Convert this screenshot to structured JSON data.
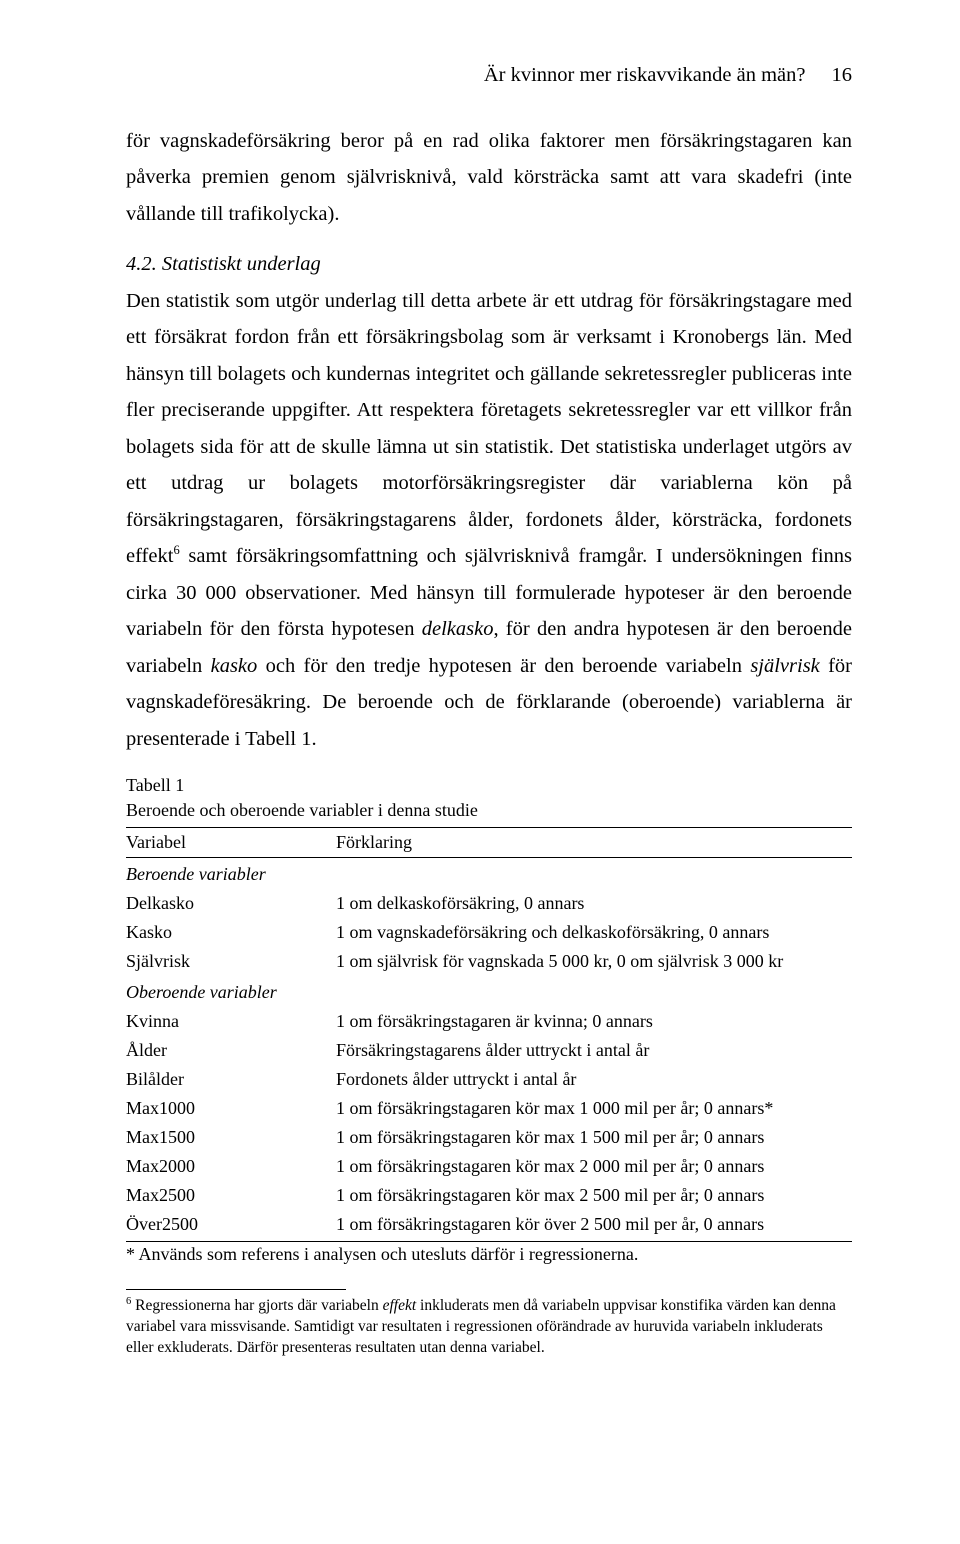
{
  "running_head": {
    "title": "Är kvinnor mer riskavvikande än män?",
    "page_number": "16"
  },
  "para1": "för vagnskadeförsäkring beror på en rad olika faktorer men försäkringstagaren kan påverka premien genom självrisknivå, vald körsträcka samt att vara skadefri (inte vållande till trafikolycka).",
  "section_heading": "4.2. Statistiskt underlag",
  "para2_a": "Den statistik som utgör underlag till detta arbete är ett utdrag för försäkringstagare med ett försäkrat fordon från ett försäkringsbolag som är verksamt i Kronobergs län. Med hänsyn till bolagets och kundernas integritet och gällande sekretessregler publiceras inte fler preciserande uppgifter. Att respektera företagets sekretessregler var ett villkor från bolagets sida för att de skulle lämna ut sin statistik. Det statistiska underlaget utgörs av ett utdrag ur bolagets motorförsäkringsregister där variablerna kön på försäkringstagaren, försäkringstagarens ålder, fordonets ålder, körsträcka, fordonets effekt",
  "sup6": "6",
  "para2_b": " samt försäkringsomfattning och självrisknivå framgår. I undersökningen finns cirka 30 000 observationer. Med hänsyn till formulerade hypoteser är den beroende variabeln för den första hypotesen ",
  "italic_delkasko": "delkasko",
  "para2_c": ", för den andra hypotesen är den beroende variabeln ",
  "italic_kasko": "kasko",
  "para2_d": " och för den tredje hypotesen är den beroende variabeln ",
  "italic_sjalvrisk": "självrisk",
  "para2_e": " för vagnskadeföresäkring. De beroende och de förklarande (oberoende) variablerna är presenterade i Tabell 1.",
  "table": {
    "title": "Tabell 1",
    "subtitle": "Beroende och oberoende variabler i denna studie",
    "col_variable": "Variabel",
    "col_explain": "Förklaring",
    "group_dep": "Beroende variabler",
    "group_indep": "Oberoende variabler",
    "dep_rows": [
      {
        "v": "Delkasko",
        "e": "1 om delkaskoförsäkring, 0 annars"
      },
      {
        "v": "Kasko",
        "e": "1 om vagnskadeförsäkring och delkaskoförsäkring, 0 annars"
      },
      {
        "v": "Självrisk",
        "e": "1 om självrisk för vagnskada 5 000 kr, 0 om självrisk 3 000 kr"
      }
    ],
    "indep_rows": [
      {
        "v": "Kvinna",
        "e": "1 om försäkringstagaren är kvinna; 0 annars"
      },
      {
        "v": "Ålder",
        "e": "Försäkringstagarens ålder uttryckt i antal år"
      },
      {
        "v": "Bilålder",
        "e": "Fordonets ålder uttryckt i antal år"
      },
      {
        "v": "Max1000",
        "e": "1 om försäkringstagaren kör max 1 000 mil per år; 0 annars*"
      },
      {
        "v": "Max1500",
        "e": "1 om försäkringstagaren kör max 1 500 mil per år; 0 annars"
      },
      {
        "v": "Max2000",
        "e": "1 om försäkringstagaren kör max 2 000 mil per år; 0 annars"
      },
      {
        "v": "Max2500",
        "e": "1 om försäkringstagaren kör max 2 500 mil per år; 0 annars"
      },
      {
        "v": "Över2500",
        "e": "1 om försäkringstagaren kör över 2 500 mil per år, 0 annars"
      }
    ],
    "footnote": "* Används som referens i analysen och utesluts därför i regressionerna."
  },
  "footnote6_a": " Regressionerna har gjorts där variabeln ",
  "footnote6_italic": "effekt",
  "footnote6_b": " inkluderats men då variabeln uppvisar konstifika värden kan denna variabel vara missvisande. Samtidigt var resultaten i regressionen oförändrade av huruvida variabeln inkluderats eller exkluderats. Därför presenteras resultaten utan denna variabel."
}
